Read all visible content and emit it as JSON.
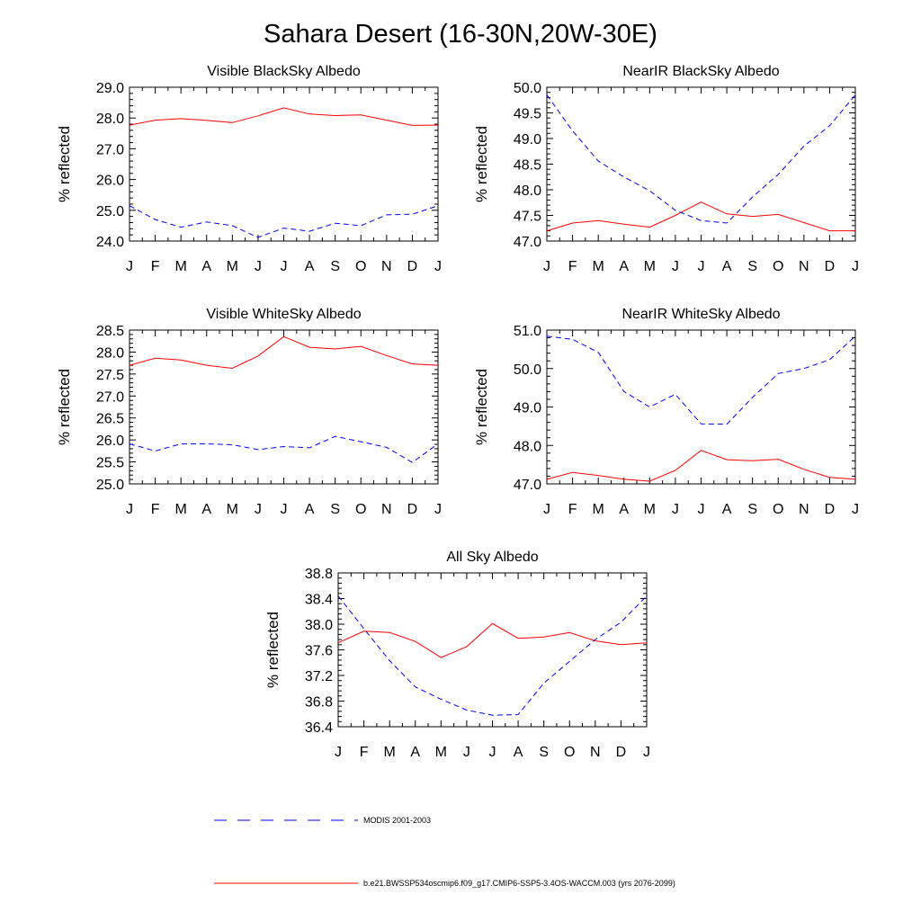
{
  "title": "Sahara Desert (16-30N,20W-30E)",
  "colors": {
    "model": "#ff0000",
    "obs": "#0000ff",
    "frame": "#000000"
  },
  "legend": [
    {
      "label": "MODIS 2001-2003",
      "style": "dashed",
      "color": "#0000ff"
    },
    {
      "label": "b.e21.BWSSP534oscmip6.f09_g17.CMIP6-SSP5-3.4OS-WACCM.003 (yrs 2076-2099)",
      "style": "solid",
      "color": "#ff0000"
    }
  ],
  "chart_data": [
    {
      "type": "line",
      "title": "Visible BlackSky Albedo",
      "ylabel": "% reflected",
      "categories": [
        "J",
        "F",
        "M",
        "A",
        "M",
        "J",
        "J",
        "A",
        "S",
        "O",
        "N",
        "D",
        "J"
      ],
      "ylim": [
        24.0,
        29.0
      ],
      "yticks": [
        "24.0",
        "25.0",
        "26.0",
        "27.0",
        "28.0",
        "29.0"
      ],
      "series": [
        {
          "name": "b.e21.BWSSP534oscmip6.f09_g17.CMIP6-SSP5-3.4OS-WACCM.003 (yrs 2076-2099)",
          "style": "solid",
          "values": [
            27.77,
            27.93,
            27.98,
            27.92,
            27.85,
            28.07,
            28.33,
            28.13,
            28.08,
            28.1,
            27.93,
            27.76,
            27.77
          ]
        },
        {
          "name": "MODIS 2001-2003",
          "style": "dashed",
          "values": [
            25.15,
            24.7,
            24.45,
            24.62,
            24.5,
            24.12,
            24.42,
            24.32,
            24.58,
            24.5,
            24.85,
            24.87,
            25.15
          ]
        }
      ]
    },
    {
      "type": "line",
      "title": "NearIR BlackSky Albedo",
      "ylabel": "% reflected",
      "categories": [
        "J",
        "F",
        "M",
        "A",
        "M",
        "J",
        "J",
        "A",
        "S",
        "O",
        "N",
        "D",
        "J"
      ],
      "ylim": [
        47.0,
        50.0
      ],
      "yticks": [
        "47.0",
        "47.5",
        "48.0",
        "48.5",
        "49.0",
        "49.5",
        "50.0"
      ],
      "series": [
        {
          "name": "b.e21.BWSSP534oscmip6.f09_g17.CMIP6-SSP5-3.4OS-WACCM.003 (yrs 2076-2099)",
          "style": "solid",
          "values": [
            47.2,
            47.35,
            47.4,
            47.33,
            47.27,
            47.5,
            47.76,
            47.53,
            47.48,
            47.52,
            47.36,
            47.2,
            47.2
          ]
        },
        {
          "name": "MODIS 2001-2003",
          "style": "dashed",
          "values": [
            49.85,
            49.15,
            48.56,
            48.25,
            47.98,
            47.6,
            47.4,
            47.35,
            47.86,
            48.3,
            48.85,
            49.25,
            49.85
          ]
        }
      ]
    },
    {
      "type": "line",
      "title": "Visible WhiteSky Albedo",
      "ylabel": "% reflected",
      "categories": [
        "J",
        "F",
        "M",
        "A",
        "M",
        "J",
        "J",
        "A",
        "S",
        "O",
        "N",
        "D",
        "J"
      ],
      "ylim": [
        25.0,
        28.5
      ],
      "yticks": [
        "25.0",
        "25.5",
        "26.0",
        "26.5",
        "27.0",
        "27.5",
        "28.0",
        "28.5"
      ],
      "series": [
        {
          "name": "b.e21.BWSSP534oscmip6.f09_g17.CMIP6-SSP5-3.4OS-WACCM.003 (yrs 2076-2099)",
          "style": "solid",
          "values": [
            27.7,
            27.86,
            27.82,
            27.7,
            27.63,
            27.91,
            28.35,
            28.11,
            28.07,
            28.13,
            27.92,
            27.73,
            27.7
          ]
        },
        {
          "name": "MODIS 2001-2003",
          "style": "dashed",
          "values": [
            25.91,
            25.75,
            25.91,
            25.91,
            25.89,
            25.78,
            25.85,
            25.82,
            26.08,
            25.96,
            25.83,
            25.49,
            25.91
          ]
        }
      ]
    },
    {
      "type": "line",
      "title": "NearIR WhiteSky Albedo",
      "ylabel": "% reflected",
      "categories": [
        "J",
        "F",
        "M",
        "A",
        "M",
        "J",
        "J",
        "A",
        "S",
        "O",
        "N",
        "D",
        "J"
      ],
      "ylim": [
        47.0,
        51.0
      ],
      "yticks": [
        "47.0",
        "48.0",
        "49.0",
        "50.0",
        "51.0"
      ],
      "series": [
        {
          "name": "b.e21.BWSSP534oscmip6.f09_g17.CMIP6-SSP5-3.4OS-WACCM.003 (yrs 2076-2099)",
          "style": "solid",
          "values": [
            47.12,
            47.3,
            47.22,
            47.12,
            47.07,
            47.35,
            47.87,
            47.63,
            47.6,
            47.64,
            47.38,
            47.17,
            47.12
          ]
        },
        {
          "name": "MODIS 2001-2003",
          "style": "dashed",
          "values": [
            50.84,
            50.76,
            50.42,
            49.4,
            49.0,
            49.33,
            48.56,
            48.55,
            49.25,
            49.87,
            50.0,
            50.23,
            50.84
          ]
        }
      ]
    },
    {
      "type": "line",
      "title": "All Sky Albedo",
      "ylabel": "% reflected",
      "categories": [
        "J",
        "F",
        "M",
        "A",
        "M",
        "J",
        "J",
        "A",
        "S",
        "O",
        "N",
        "D",
        "J"
      ],
      "ylim": [
        36.4,
        38.8
      ],
      "yticks": [
        "36.4",
        "36.8",
        "37.2",
        "37.6",
        "38.0",
        "38.4",
        "38.8"
      ],
      "series": [
        {
          "name": "b.e21.BWSSP534oscmip6.f09_g17.CMIP6-SSP5-3.4OS-WACCM.003 (yrs 2076-2099)",
          "style": "solid",
          "values": [
            37.71,
            37.89,
            37.87,
            37.73,
            37.48,
            37.65,
            38.01,
            37.78,
            37.8,
            37.87,
            37.74,
            37.68,
            37.71
          ]
        },
        {
          "name": "MODIS 2001-2003",
          "style": "dashed",
          "values": [
            38.44,
            37.93,
            37.43,
            37.02,
            36.83,
            36.66,
            36.58,
            36.59,
            37.08,
            37.42,
            37.76,
            38.03,
            38.44
          ]
        }
      ]
    }
  ]
}
